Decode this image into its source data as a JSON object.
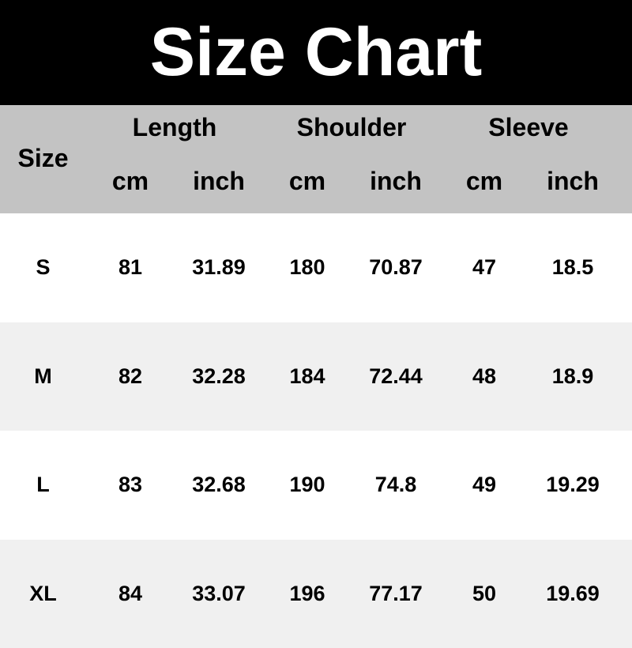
{
  "title": "Size Chart",
  "header": {
    "size": "Size",
    "groups": [
      "Length",
      "Shoulder",
      "Sleeve"
    ],
    "units": [
      "cm",
      "inch",
      "cm",
      "inch",
      "cm",
      "inch"
    ]
  },
  "rows": [
    [
      "S",
      "81",
      "31.89",
      "180",
      "70.87",
      "47",
      "18.5"
    ],
    [
      "M",
      "82",
      "32.28",
      "184",
      "72.44",
      "48",
      "18.9"
    ],
    [
      "L",
      "83",
      "32.68",
      "190",
      "74.8",
      "49",
      "19.29"
    ],
    [
      "XL",
      "84",
      "33.07",
      "196",
      "77.17",
      "50",
      "19.69"
    ]
  ]
}
